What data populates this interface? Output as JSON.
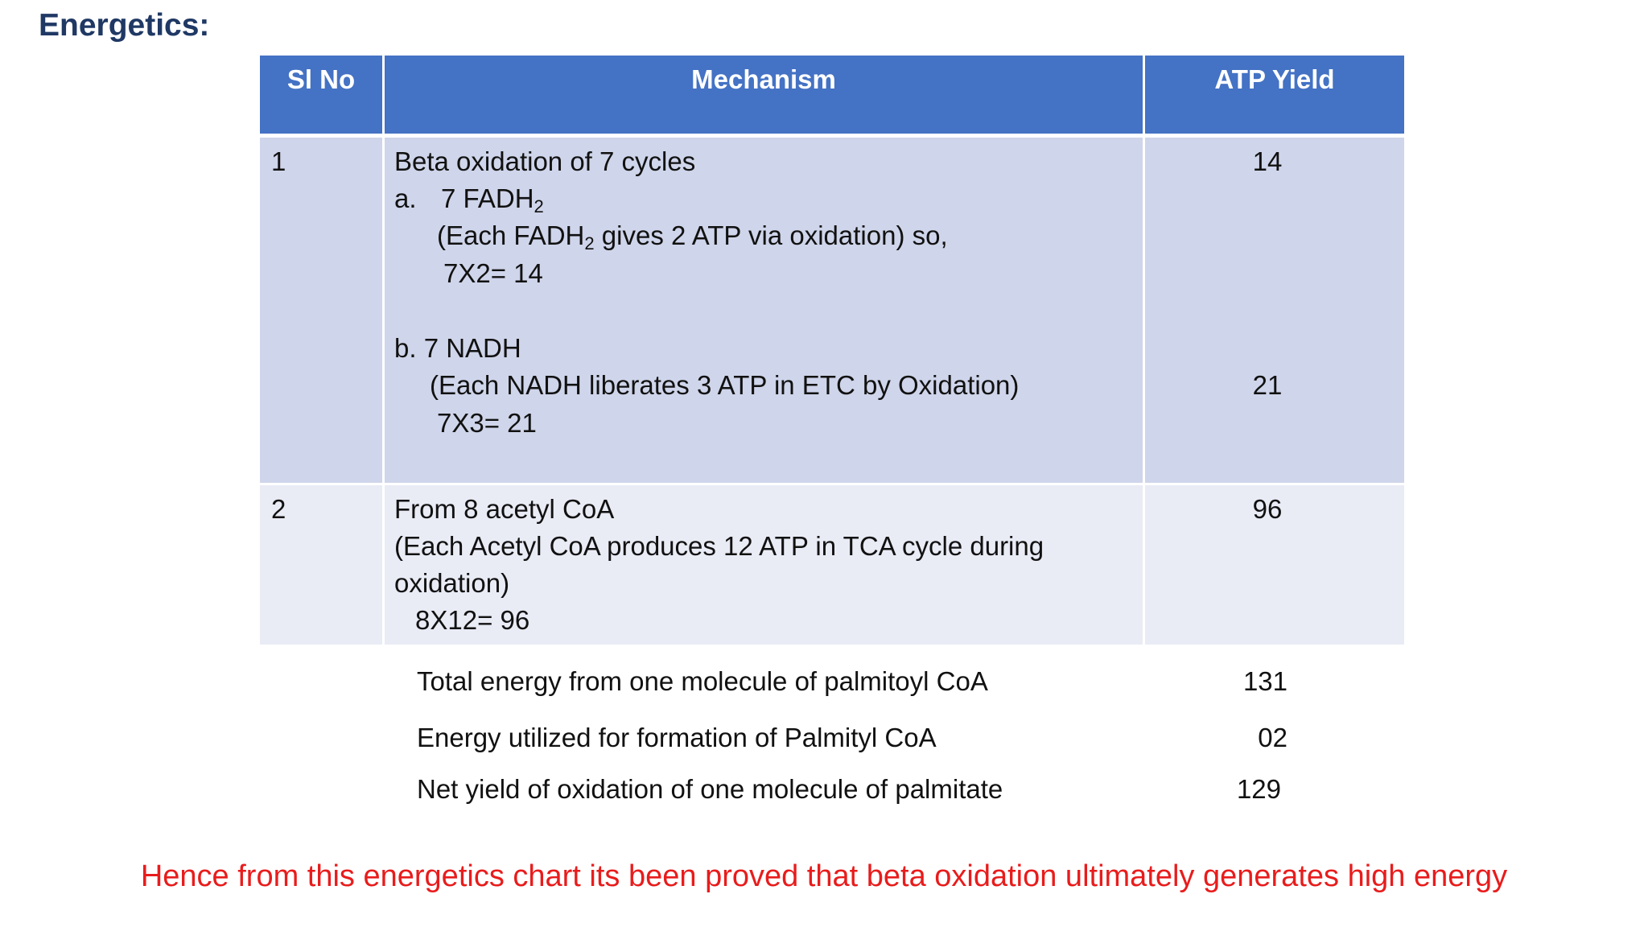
{
  "title": "Energetics:",
  "table": {
    "headers": {
      "sl_no": "Sl No",
      "mechanism": "Mechanism",
      "atp_yield": "ATP Yield"
    },
    "rows": [
      {
        "sl_no": "1",
        "mechanism_heading": "Beta oxidation of 7 cycles",
        "part_a": {
          "label": "a.",
          "title_main": "7 FADH",
          "title_sub": "2",
          "note_before": "(Each FADH",
          "note_sub": "2",
          "note_after": " gives 2 ATP via oxidation) so,",
          "calc": "7X2= 14",
          "yield": "14"
        },
        "part_b": {
          "title": "b. 7 NADH",
          "note": "(Each NADH liberates 3 ATP in ETC by Oxidation)",
          "calc": "7X3= 21",
          "yield": "21"
        }
      },
      {
        "sl_no": "2",
        "line1": "From 8 acetyl CoA",
        "line2": "(Each Acetyl CoA produces 12 ATP in TCA cycle during",
        "line3": "oxidation)",
        "calc": "8X12= 96",
        "yield": "96"
      }
    ]
  },
  "summary": [
    {
      "label": "Total energy from one molecule of palmitoyl CoA",
      "value": "131"
    },
    {
      "label": "Energy utilized for formation of Palmityl CoA",
      "value": "02"
    },
    {
      "label": "Net yield of oxidation of one molecule of palmitate",
      "value": "129"
    }
  ],
  "conclusion": "Hence from this energetics chart its been proved that beta oxidation ultimately generates high energy",
  "colors": {
    "header_fill": "#4472c4",
    "row1_fill": "#cfd5ea",
    "row2_fill": "#e9ebf5",
    "title": "#1f3864",
    "conclusion": "#e81c1c"
  }
}
